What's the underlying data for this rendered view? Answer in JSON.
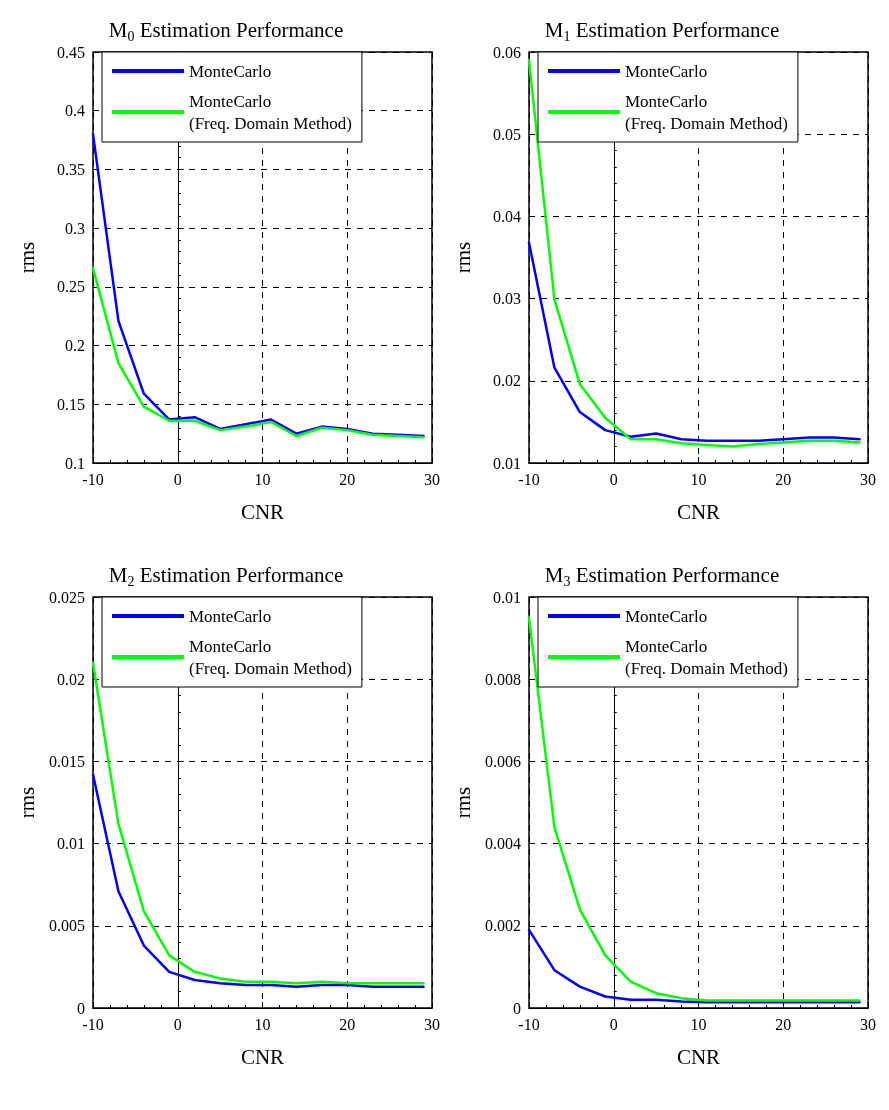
{
  "chart_data": [
    {
      "type": "line",
      "title": "M$_{0}$ Estimation Performance",
      "xlabel": "CNR",
      "ylabel": "rms",
      "xlim": [
        -10,
        30
      ],
      "xticks": [
        -10,
        0,
        10,
        20,
        30
      ],
      "ylim": [
        0.1,
        0.45
      ],
      "yticks": [
        0.1,
        0.15,
        0.2,
        0.25,
        0.3,
        0.35,
        0.4,
        0.45
      ],
      "grid": true,
      "legend": "top",
      "marker": "none",
      "line_style": "solid",
      "x": [
        -10,
        -7,
        -4,
        -1,
        2,
        5,
        8,
        11,
        14,
        17,
        20,
        23,
        26,
        29
      ],
      "series": [
        {
          "name": "MonteCarlo",
          "color": "#0000ff",
          "values": [
            0.38,
            0.221,
            0.159,
            0.137,
            0.139,
            0.129,
            0.133,
            0.137,
            0.125,
            0.131,
            0.129,
            0.125,
            0.124,
            0.123
          ]
        },
        {
          "name": "MonteCarlo\n(Freq. Domain Method)",
          "color": "#00ff00",
          "values": [
            0.266,
            0.185,
            0.148,
            0.136,
            0.136,
            0.128,
            0.131,
            0.135,
            0.123,
            0.13,
            0.128,
            0.124,
            0.123,
            0.122
          ]
        }
      ]
    },
    {
      "type": "line",
      "title": "M$_{1}$ Estimation Performance",
      "xlabel": "CNR",
      "ylabel": "rms",
      "xlim": [
        -10,
        30
      ],
      "xticks": [
        -10,
        0,
        10,
        20,
        30
      ],
      "ylim": [
        0.01,
        0.06
      ],
      "yticks": [
        0.01,
        0.02,
        0.03,
        0.04,
        0.05,
        0.06
      ],
      "grid": true,
      "legend": "top",
      "marker": "none",
      "line_style": "solid",
      "x": [
        -10,
        -7,
        -4,
        -1,
        2,
        5,
        8,
        11,
        14,
        17,
        20,
        23,
        26,
        29
      ],
      "series": [
        {
          "name": "MonteCarlo",
          "color": "#0000ff",
          "values": [
            0.0368,
            0.0216,
            0.0162,
            0.014,
            0.0132,
            0.0136,
            0.0129,
            0.0127,
            0.0127,
            0.0127,
            0.0129,
            0.0131,
            0.0131,
            0.0129
          ]
        },
        {
          "name": "MonteCarlo\n(Freq. Domain Method)",
          "color": "#00ff00",
          "values": [
            0.059,
            0.0299,
            0.0196,
            0.0155,
            0.0129,
            0.0129,
            0.0124,
            0.0122,
            0.012,
            0.0123,
            0.0125,
            0.0127,
            0.0127,
            0.0125
          ]
        }
      ]
    },
    {
      "type": "line",
      "title": "M$_{2}$ Estimation Performance",
      "xlabel": "CNR",
      "ylabel": "rms",
      "xlim": [
        -10,
        30
      ],
      "xticks": [
        -10,
        0,
        10,
        20,
        30
      ],
      "ylim": [
        0,
        0.025
      ],
      "yticks": [
        0,
        0.005,
        0.01,
        0.015,
        0.02,
        0.025
      ],
      "grid": true,
      "legend": "top",
      "marker": "none",
      "line_style": "solid",
      "x": [
        -10,
        -7,
        -4,
        -1,
        2,
        5,
        8,
        11,
        14,
        17,
        20,
        23,
        26,
        29
      ],
      "series": [
        {
          "name": "MonteCarlo",
          "color": "#0000ff",
          "values": [
            0.0142,
            0.0071,
            0.0038,
            0.0022,
            0.0017,
            0.0015,
            0.0014,
            0.0014,
            0.0013,
            0.0014,
            0.0014,
            0.0013,
            0.0013,
            0.0013
          ]
        },
        {
          "name": "MonteCarlo\n(Freq. Domain Method)",
          "color": "#00ff00",
          "values": [
            0.021,
            0.0112,
            0.0059,
            0.0032,
            0.0022,
            0.0018,
            0.0016,
            0.0016,
            0.0015,
            0.0016,
            0.0015,
            0.0015,
            0.0015,
            0.0015
          ]
        }
      ]
    },
    {
      "type": "line",
      "title": "M$_{3}$ Estimation Performance",
      "xlabel": "CNR",
      "ylabel": "rms",
      "xlim": [
        -10,
        30
      ],
      "xticks": [
        -10,
        0,
        10,
        20,
        30
      ],
      "ylim": [
        0,
        0.01
      ],
      "yticks": [
        0,
        0.002,
        0.004,
        0.006,
        0.008,
        0.01
      ],
      "grid": true,
      "legend": "top",
      "marker": "none",
      "line_style": "solid",
      "x": [
        -10,
        -7,
        -4,
        -1,
        2,
        5,
        8,
        11,
        14,
        17,
        20,
        23,
        26,
        29
      ],
      "series": [
        {
          "name": "MonteCarlo",
          "color": "#0000ff",
          "values": [
            0.0019,
            0.00092,
            0.00052,
            0.00028,
            0.0002,
            0.0002,
            0.00016,
            0.00014,
            0.00014,
            0.00014,
            0.00014,
            0.00014,
            0.00014,
            0.00014
          ]
        },
        {
          "name": "MonteCarlo\n(Freq. Domain Method)",
          "color": "#00ff00",
          "values": [
            0.0095,
            0.0044,
            0.0024,
            0.00128,
            0.00064,
            0.00036,
            0.00024,
            0.00018,
            0.00018,
            0.00018,
            0.00018,
            0.00018,
            0.00018,
            0.00018
          ]
        }
      ]
    }
  ]
}
